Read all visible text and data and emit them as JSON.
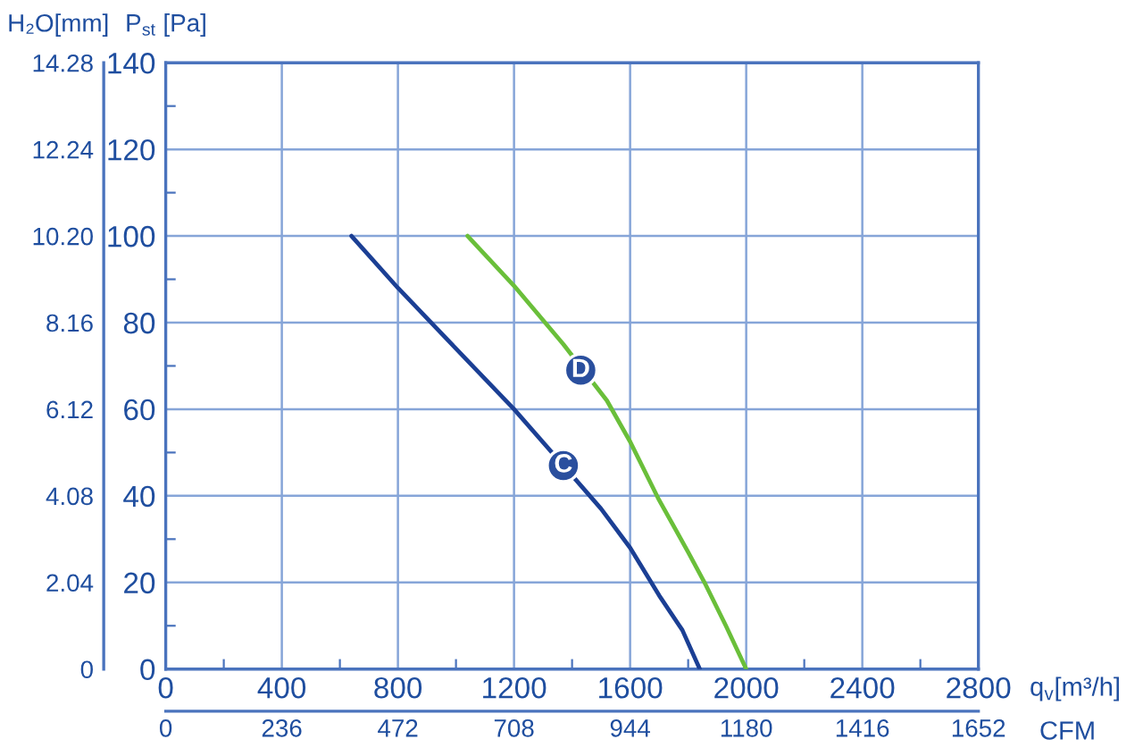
{
  "chart_data": {
    "type": "line",
    "xlabel": "q$_{v}$[m³/h]",
    "ylabel": "P$_{st}$ [Pa]",
    "y2label": "H₂O[mm]",
    "x2label": "CFM",
    "xlim": [
      0,
      2800
    ],
    "xticks": [
      0,
      400,
      800,
      1200,
      1600,
      2000,
      2400,
      2800
    ],
    "x2lim": [
      0,
      1652
    ],
    "x2ticks": [
      0,
      236,
      472,
      708,
      944,
      1180,
      1416,
      1652
    ],
    "ylim": [
      0,
      140
    ],
    "yticks": [
      0,
      20,
      40,
      60,
      80,
      100,
      120,
      140
    ],
    "y2lim": [
      0,
      14.28
    ],
    "y2ticks": [
      0,
      2.04,
      4.08,
      6.12,
      8.16,
      {
        "value": 10.2,
        "label": "10.20"
      },
      12.24,
      14.28
    ],
    "grid": true,
    "series": [
      {
        "color": "#1b3f94",
        "x": [
          640,
          800,
          1000,
          1200,
          1370,
          1500,
          1600,
          1700,
          1780,
          1840
        ],
        "values": [
          100,
          88,
          74,
          60,
          47,
          37,
          28,
          17,
          9,
          0
        ]
      },
      {
        "color": "#6abf3a",
        "x": [
          1040,
          1200,
          1370,
          1520,
          1600,
          1700,
          1800,
          1860,
          1930,
          2000
        ],
        "values": [
          100,
          88.5,
          75,
          62,
          52.5,
          39,
          27,
          19.5,
          10,
          0
        ]
      }
    ],
    "annotations": [
      {
        "text": "C",
        "x": 1370,
        "y": 47
      },
      {
        "text": "D",
        "x": 1430,
        "y": 69
      }
    ]
  }
}
